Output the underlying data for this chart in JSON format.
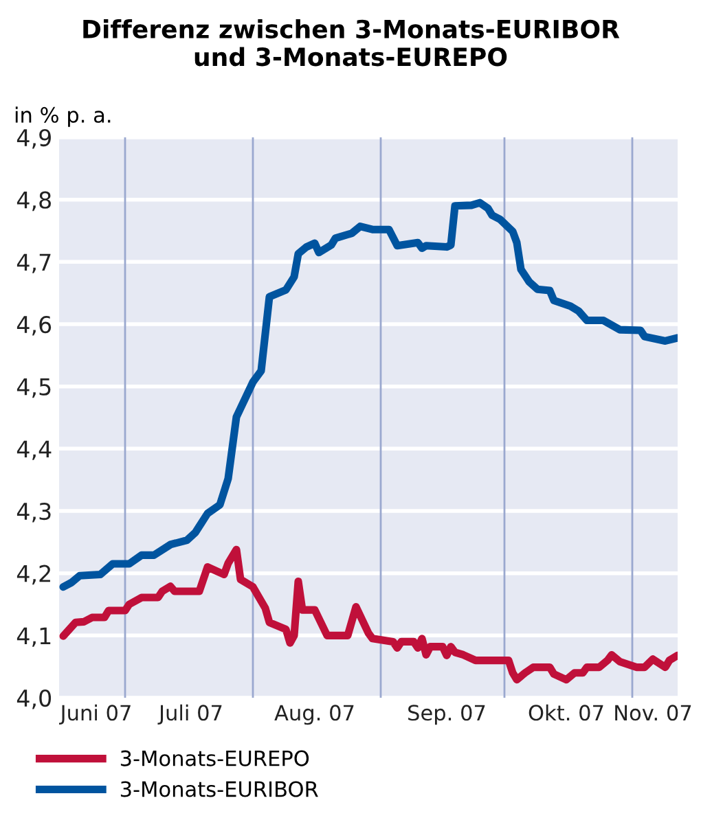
{
  "chart_data": {
    "type": "line",
    "title": "Differenz zwischen 3-Monats-EURIBOR\nund 3-Monats-EUREPO",
    "ylabel": "in % p. a.",
    "xlim": [
      "2007-06-15",
      "2007-11-12"
    ],
    "ylim": [
      4.0,
      4.9
    ],
    "yticks": [
      {
        "value": 4.0,
        "label": "4,0"
      },
      {
        "value": 4.1,
        "label": "4,1"
      },
      {
        "value": 4.2,
        "label": "4,2"
      },
      {
        "value": 4.3,
        "label": "4,3"
      },
      {
        "value": 4.4,
        "label": "4,4"
      },
      {
        "value": 4.5,
        "label": "4,5"
      },
      {
        "value": 4.6,
        "label": "4,6"
      },
      {
        "value": 4.7,
        "label": "4,7"
      },
      {
        "value": 4.8,
        "label": "4,8"
      },
      {
        "value": 4.9,
        "label": "4,9"
      }
    ],
    "xticks": [
      {
        "value": "2007-06-24",
        "label": "Juni 07"
      },
      {
        "value": "2007-07-17",
        "label": "Juli 07"
      },
      {
        "value": "2007-08-16",
        "label": "Aug. 07"
      },
      {
        "value": "2007-09-17",
        "label": "Sep. 07"
      },
      {
        "value": "2007-10-16",
        "label": "Okt. 07"
      },
      {
        "value": "2007-11-06",
        "label": "Nov. 07"
      }
    ],
    "ref_lines": [
      {
        "axis": "x",
        "value": "2007-07-01",
        "color": "#9aa8cf"
      },
      {
        "axis": "x",
        "value": "2007-08-01",
        "color": "#9aa8cf"
      },
      {
        "axis": "x",
        "value": "2007-09-01",
        "color": "#9aa8cf"
      },
      {
        "axis": "x",
        "value": "2007-10-01",
        "color": "#9aa8cf"
      },
      {
        "axis": "x",
        "value": "2007-11-01",
        "color": "#9aa8cf"
      }
    ],
    "grid": "y",
    "legend": "bottom",
    "line_style": "solid",
    "series": [
      {
        "name": "3-Monats-EUREPO",
        "color": "#c0103a",
        "x": [
          "2007-06-16",
          "2007-06-19",
          "2007-06-21",
          "2007-06-23",
          "2007-06-26",
          "2007-06-27",
          "2007-07-01",
          "2007-07-02",
          "2007-07-05",
          "2007-07-09",
          "2007-07-10",
          "2007-07-12",
          "2007-07-13",
          "2007-07-19",
          "2007-07-21",
          "2007-07-25",
          "2007-07-26",
          "2007-07-28",
          "2007-07-29",
          "2007-08-01",
          "2007-08-04",
          "2007-08-05",
          "2007-08-09",
          "2007-08-10",
          "2007-08-11",
          "2007-08-12",
          "2007-08-13",
          "2007-08-16",
          "2007-08-19",
          "2007-08-24",
          "2007-08-26",
          "2007-08-29",
          "2007-08-30",
          "2007-09-04",
          "2007-09-05",
          "2007-09-06",
          "2007-09-09",
          "2007-09-10",
          "2007-09-11",
          "2007-09-12",
          "2007-09-13",
          "2007-09-16",
          "2007-09-17",
          "2007-09-18",
          "2007-09-19",
          "2007-09-21",
          "2007-09-24",
          "2007-10-02",
          "2007-10-03",
          "2007-10-04",
          "2007-10-06",
          "2007-10-08",
          "2007-10-12",
          "2007-10-13",
          "2007-10-16",
          "2007-10-18",
          "2007-10-20",
          "2007-10-21",
          "2007-10-24",
          "2007-10-26",
          "2007-10-27",
          "2007-10-29",
          "2007-11-02",
          "2007-11-04",
          "2007-11-06",
          "2007-11-09",
          "2007-11-10",
          "2007-11-12"
        ],
        "values": [
          4.099,
          4.121,
          4.122,
          4.129,
          4.129,
          4.14,
          4.14,
          4.15,
          4.161,
          4.161,
          4.171,
          4.179,
          4.171,
          4.171,
          4.21,
          4.198,
          4.216,
          4.238,
          4.19,
          4.178,
          4.144,
          4.121,
          4.11,
          4.088,
          4.1,
          4.187,
          4.141,
          4.141,
          4.1,
          4.1,
          4.146,
          4.104,
          4.095,
          4.09,
          4.08,
          4.09,
          4.09,
          4.08,
          4.095,
          4.069,
          4.082,
          4.082,
          4.068,
          4.082,
          4.073,
          4.069,
          4.06,
          4.06,
          4.04,
          4.029,
          4.04,
          4.049,
          4.049,
          4.038,
          4.029,
          4.04,
          4.04,
          4.049,
          4.049,
          4.06,
          4.069,
          4.058,
          4.049,
          4.049,
          4.062,
          4.049,
          4.06,
          4.068
        ]
      },
      {
        "name": "3-Monats-EURIBOR",
        "color": "#00549f",
        "x": [
          "2007-06-16",
          "2007-06-18",
          "2007-06-20",
          "2007-06-25",
          "2007-06-28",
          "2007-07-02",
          "2007-07-05",
          "2007-07-08",
          "2007-07-12",
          "2007-07-16",
          "2007-07-18",
          "2007-07-21",
          "2007-07-24",
          "2007-07-26",
          "2007-07-28",
          "2007-08-01",
          "2007-08-03",
          "2007-08-05",
          "2007-08-09",
          "2007-08-11",
          "2007-08-12",
          "2007-08-14",
          "2007-08-16",
          "2007-08-17",
          "2007-08-20",
          "2007-08-21",
          "2007-08-25",
          "2007-08-27",
          "2007-08-30",
          "2007-09-03",
          "2007-09-05",
          "2007-09-10",
          "2007-09-11",
          "2007-09-12",
          "2007-09-17",
          "2007-09-18",
          "2007-09-19",
          "2007-09-23",
          "2007-09-25",
          "2007-09-27",
          "2007-09-28",
          "2007-09-30",
          "2007-10-03",
          "2007-10-04",
          "2007-10-05",
          "2007-10-07",
          "2007-10-09",
          "2007-10-12",
          "2007-10-13",
          "2007-10-17",
          "2007-10-19",
          "2007-10-21",
          "2007-10-25",
          "2007-10-29",
          "2007-11-03",
          "2007-11-04",
          "2007-11-09",
          "2007-11-12"
        ],
        "values": [
          4.178,
          4.185,
          4.196,
          4.198,
          4.215,
          4.215,
          4.229,
          4.229,
          4.246,
          4.253,
          4.265,
          4.296,
          4.31,
          4.352,
          4.451,
          4.507,
          4.525,
          4.644,
          4.655,
          4.676,
          4.713,
          4.724,
          4.73,
          4.715,
          4.727,
          4.738,
          4.746,
          4.757,
          4.752,
          4.752,
          4.726,
          4.731,
          4.722,
          4.726,
          4.724,
          4.727,
          4.79,
          4.791,
          4.795,
          4.786,
          4.775,
          4.768,
          4.749,
          4.731,
          4.688,
          4.668,
          4.656,
          4.654,
          4.638,
          4.629,
          4.621,
          4.606,
          4.606,
          4.591,
          4.59,
          4.58,
          4.573,
          4.578
        ]
      }
    ]
  }
}
